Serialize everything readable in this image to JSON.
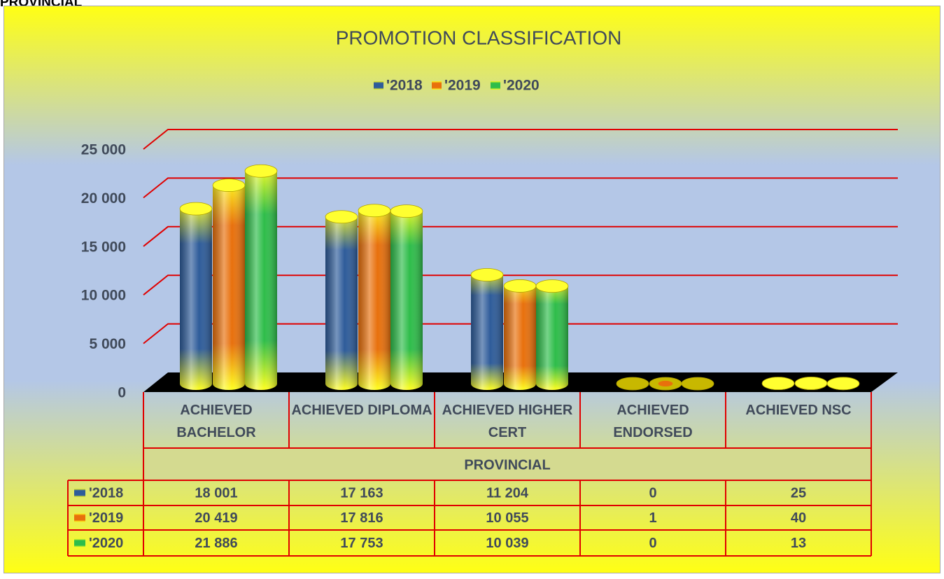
{
  "page_heading": "PROVINCIAL",
  "chart_data": {
    "type": "bar3d",
    "title": "PROMOTION CLASSIFICATION",
    "x_label": "PROVINCIAL",
    "categories": [
      "ACHIEVED BACHELOR",
      "ACHIEVED DIPLOMA",
      "ACHIEVED HIGHER CERT",
      "ACHIEVED ENDORSED",
      "ACHIEVED NSC"
    ],
    "series": [
      {
        "name": "'2018",
        "color": "#2e5c9a",
        "values": [
          18001,
          17163,
          11204,
          0,
          25
        ],
        "value_labels": [
          "18 001",
          "17 163",
          "11 204",
          "0",
          "25"
        ]
      },
      {
        "name": "'2019",
        "color": "#e8700c",
        "values": [
          20419,
          17816,
          10055,
          1,
          40
        ],
        "value_labels": [
          "20 419",
          "17 816",
          "10 055",
          "1",
          "40"
        ]
      },
      {
        "name": "'2020",
        "color": "#2ebd4a",
        "values": [
          21886,
          17753,
          10039,
          0,
          13
        ],
        "value_labels": [
          "21 886",
          "17 753",
          "10 039",
          "0",
          "13"
        ]
      }
    ],
    "ylim": [
      0,
      25000
    ],
    "yticks": [
      0,
      {
        "value": 5000,
        "label": "5 000"
      },
      {
        "value": 10000,
        "label": "10 000"
      },
      {
        "value": 15000,
        "label": "15 000"
      },
      {
        "value": 20000,
        "label": "20 000"
      },
      {
        "value": 25000,
        "label": "25 000"
      }
    ],
    "grid": true,
    "grid_color": "#e00000",
    "legend": "top"
  }
}
